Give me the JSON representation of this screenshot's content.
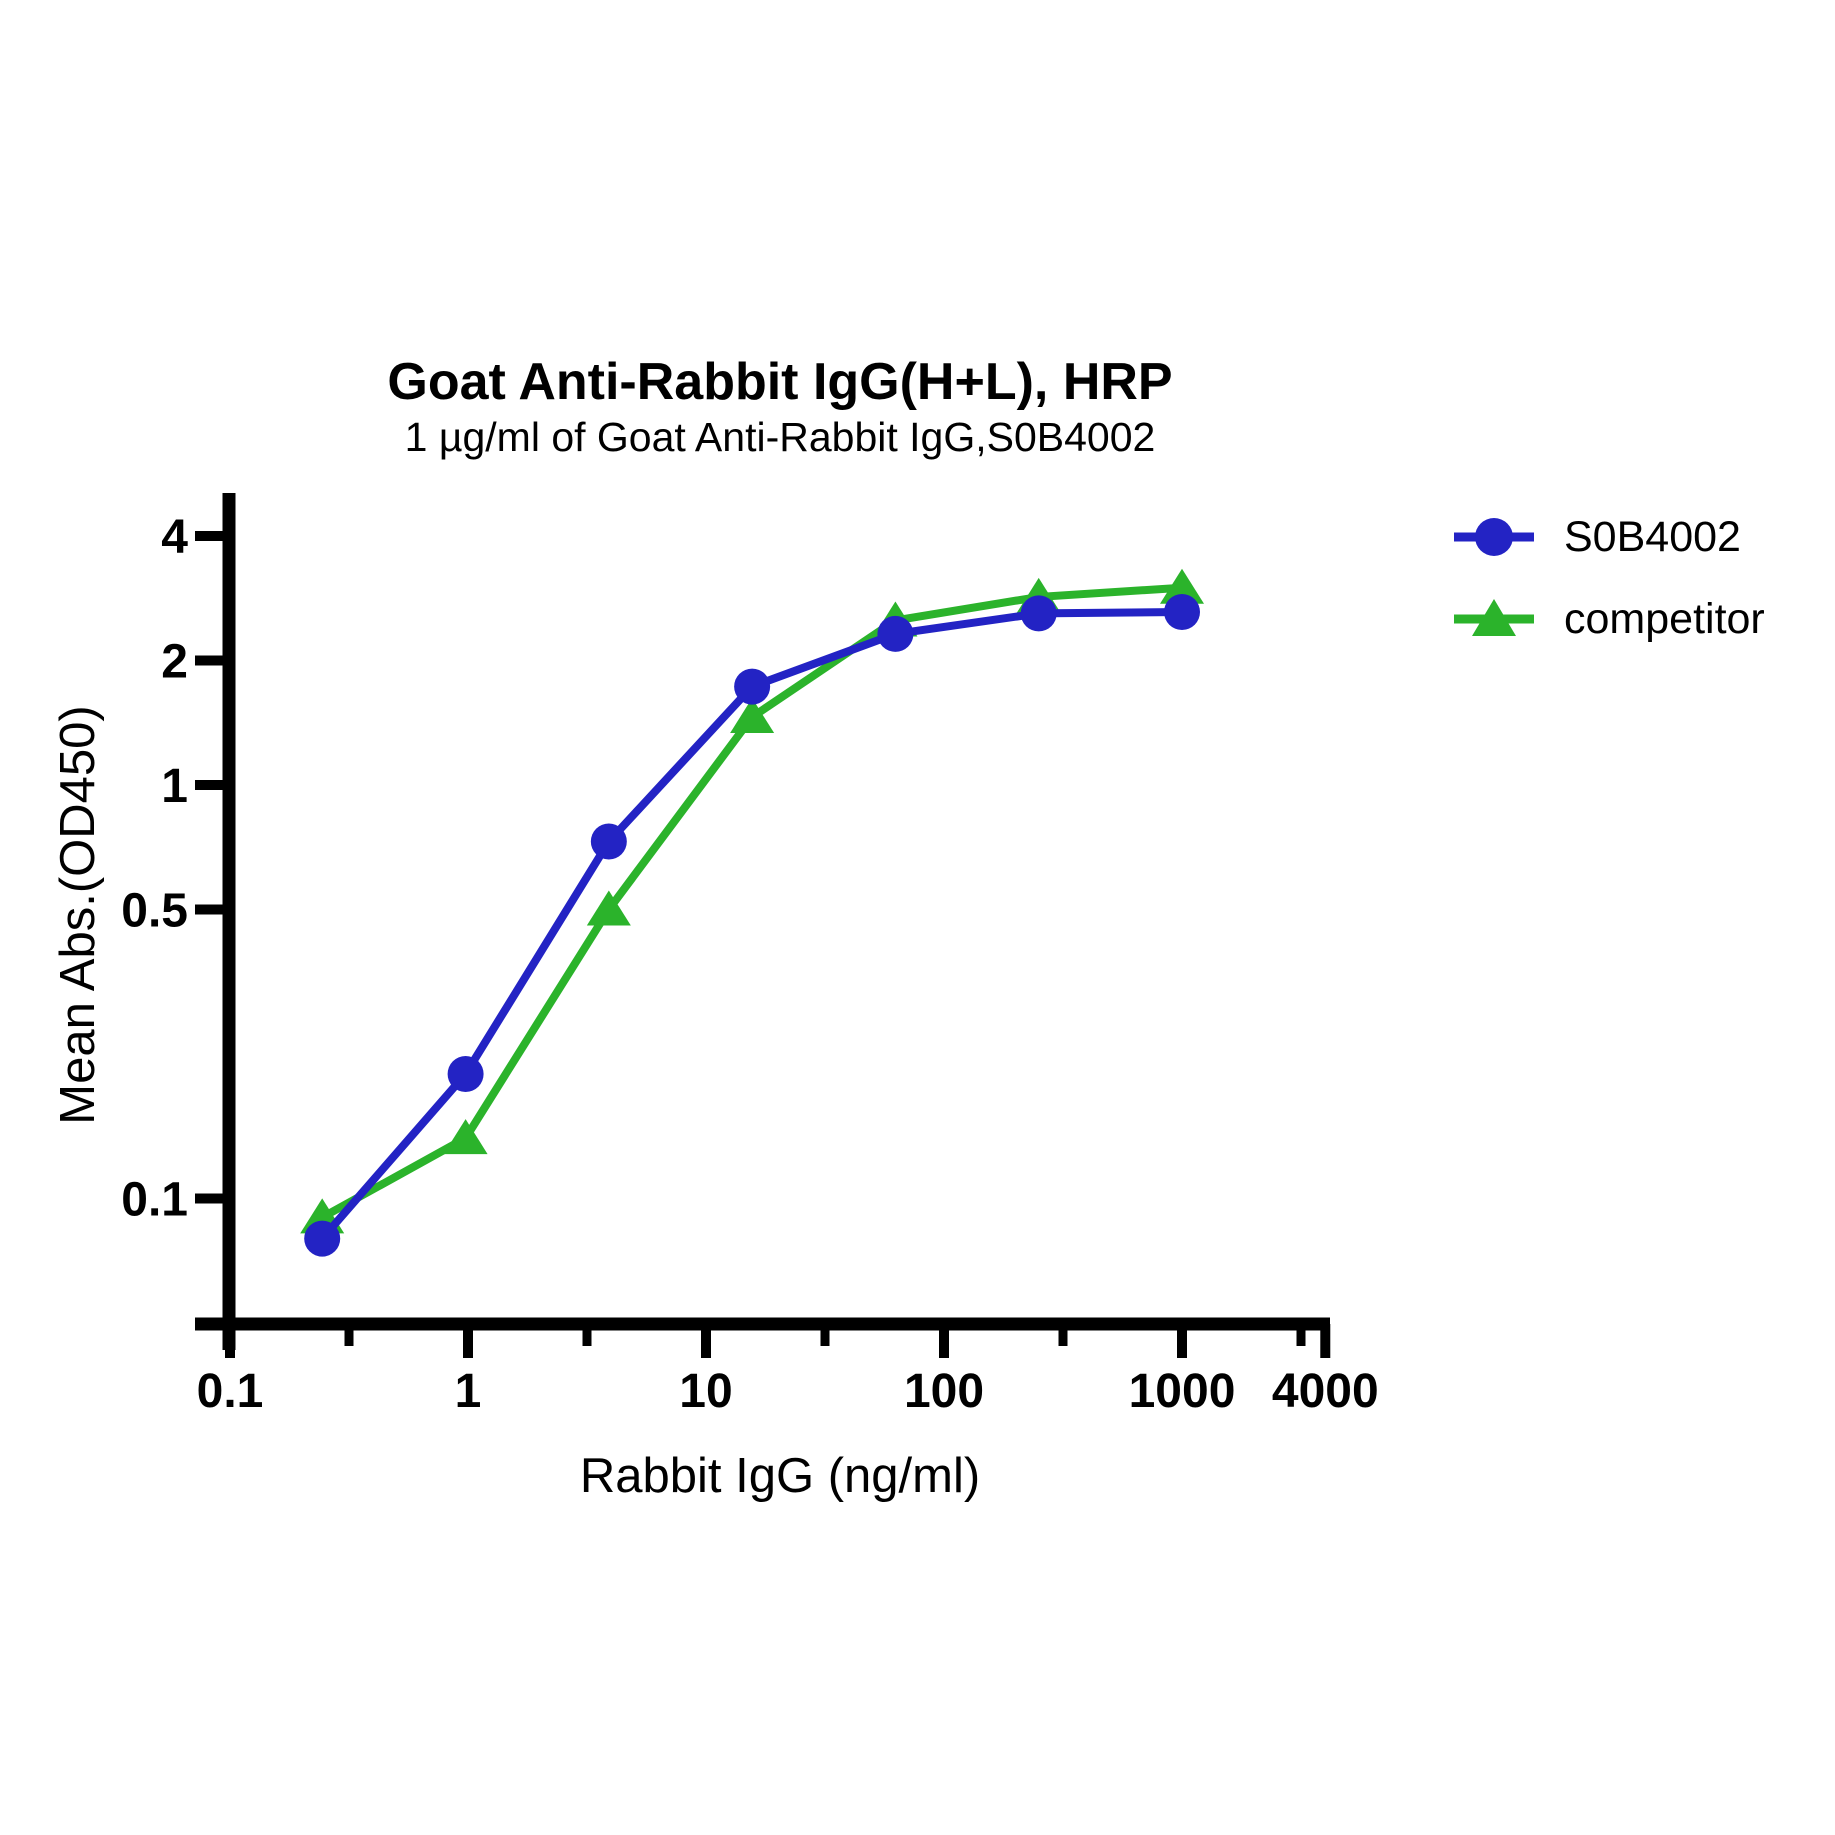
{
  "chart_data": {
    "type": "line",
    "title": "Goat Anti-Rabbit IgG(H+L), HRP",
    "subtitle": "1 µg/ml of Goat Anti-Rabbit IgG,S0B4002",
    "xlabel": "Rabbit IgG (ng/ml)",
    "ylabel": "Mean Abs.(OD450)",
    "x_scale": "log",
    "y_scale": "log",
    "x_range": [
      0.1,
      4000
    ],
    "y_range": [
      0.045,
      5
    ],
    "grid": false,
    "legend_position": "right",
    "axis_color": "#000000",
    "x_major_ticks": [
      "0.1",
      "1",
      "10",
      "100",
      "1000",
      "4000"
    ],
    "x_minor_ticks": [
      0.3162,
      3.162,
      31.62,
      316.2,
      3162
    ],
    "y_major_ticks": [
      "0.1",
      "0.5",
      "1",
      "2",
      "4"
    ],
    "x": [
      0.244,
      0.977,
      3.906,
      15.625,
      62.5,
      250,
      1000
    ],
    "series": [
      {
        "name": "S0B4002",
        "color": "#2323C4",
        "marker": "circle",
        "values": [
          0.08,
          0.2,
          0.73,
          1.73,
          2.32,
          2.6,
          2.62
        ]
      },
      {
        "name": "competitor",
        "color": "#2BB32B",
        "marker": "triangle",
        "values": [
          0.09,
          0.14,
          0.5,
          1.46,
          2.5,
          2.85,
          3.0
        ]
      }
    ]
  }
}
